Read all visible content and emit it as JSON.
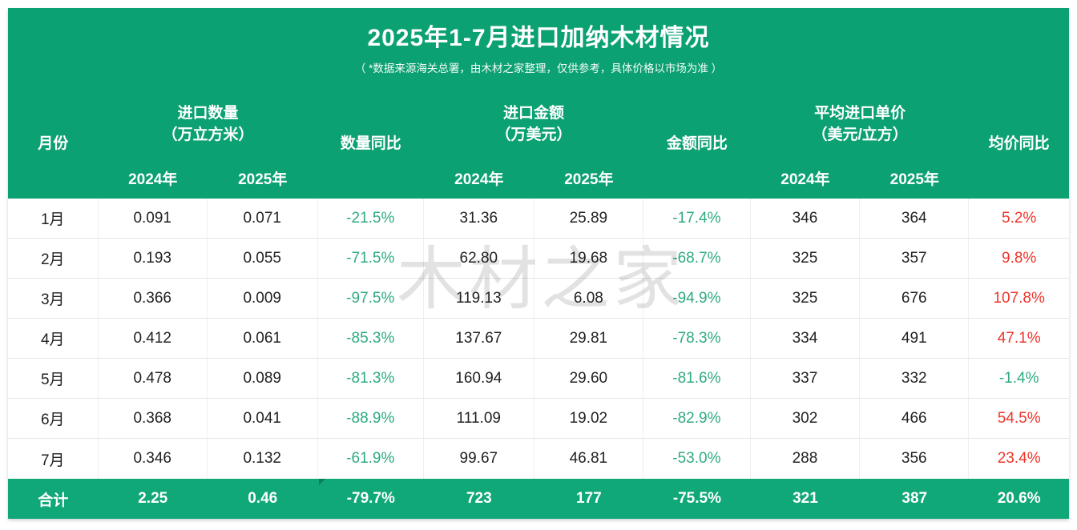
{
  "title": "2025年1-7月进口加纳木材情况",
  "subtitle": "（ *数据来源海关总署，由木材之家整理，仅供参考，具体价格以市场为准 ）",
  "watermark": "木材之家",
  "colors": {
    "header_green": "#0BA173",
    "total_row_green": "#10A878",
    "negative_text_green": "#2FAB7F",
    "positive_text_red": "#EE352C"
  },
  "chart_data": {
    "type": "table",
    "title": "2025年1-7月进口加纳木材情况",
    "subtitle": "（ *数据来源海关总署，由木材之家整理，仅供参考，具体价格以市场为准 ）",
    "header": {
      "month_label": "月份",
      "qty_group_line1": "进口数量",
      "qty_group_line2": "（万立方米）",
      "qty_yoy_label": "数量同比",
      "amount_group_line1": "进口金额",
      "amount_group_line2": "（万美元）",
      "amount_yoy_label": "金额同比",
      "price_group_line1": "平均进口单价",
      "price_group_line2": "（美元/立方）",
      "price_yoy_label": "均价同比",
      "year_2024": "2024年",
      "year_2025": "2025年"
    },
    "yoy_column_indexes": [
      3,
      6,
      9
    ],
    "rows": [
      [
        "1月",
        "0.091",
        "0.071",
        "-21.5%",
        "31.36",
        "25.89",
        "-17.4%",
        "346",
        "364",
        "5.2%"
      ],
      [
        "2月",
        "0.193",
        "0.055",
        "-71.5%",
        "62.80",
        "19.68",
        "-68.7%",
        "325",
        "357",
        "9.8%"
      ],
      [
        "3月",
        "0.366",
        "0.009",
        "-97.5%",
        "119.13",
        "6.08",
        "-94.9%",
        "325",
        "676",
        "107.8%"
      ],
      [
        "4月",
        "0.412",
        "0.061",
        "-85.3%",
        "137.67",
        "29.81",
        "-78.3%",
        "334",
        "491",
        "47.1%"
      ],
      [
        "5月",
        "0.478",
        "0.089",
        "-81.3%",
        "160.94",
        "29.60",
        "-81.6%",
        "337",
        "332",
        "-1.4%"
      ],
      [
        "6月",
        "0.368",
        "0.041",
        "-88.9%",
        "111.09",
        "19.02",
        "-82.9%",
        "302",
        "466",
        "54.5%"
      ],
      [
        "7月",
        "0.346",
        "0.132",
        "-61.9%",
        "99.67",
        "46.81",
        "-53.0%",
        "288",
        "356",
        "23.4%"
      ]
    ],
    "total": [
      "合计",
      "2.25",
      "0.46",
      "-79.7%",
      "723",
      "177",
      "-75.5%",
      "321",
      "387",
      "20.6%"
    ]
  }
}
